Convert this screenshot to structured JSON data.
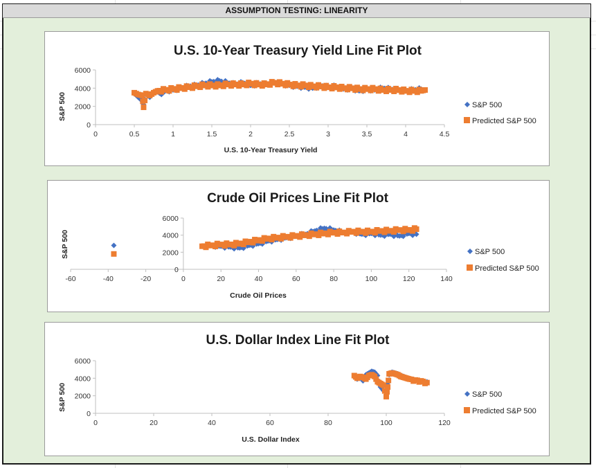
{
  "sheet": {
    "header": "ASSUMPTION TESTING: LINEARITY"
  },
  "colors": {
    "actual": "#4472C4",
    "predicted": "#ED7D31"
  },
  "chart_data": [
    {
      "type": "scatter",
      "title": "U.S. 10-Year Treasury Yield Line Fit  Plot",
      "xlabel": "U.S. 10-Year Treasury Yield",
      "ylabel": "S&P 500",
      "xlim": [
        0,
        4.5
      ],
      "ylim": [
        0,
        6000
      ],
      "xticks": [
        "0",
        "0.5",
        "1",
        "1.5",
        "2",
        "2.5",
        "3",
        "3.5",
        "4",
        "4.5"
      ],
      "yticks": [
        "0",
        "2000",
        "4000",
        "6000"
      ],
      "legend": [
        "S&P 500",
        "Predicted S&P 500"
      ],
      "legend_position": "right",
      "series": [
        {
          "name": "S&P 500",
          "marker": "diamond",
          "points": [
            [
              0.5,
              3400
            ],
            [
              0.55,
              3000
            ],
            [
              0.6,
              2600
            ],
            [
              0.62,
              2200
            ],
            [
              0.65,
              3300
            ],
            [
              0.7,
              3000
            ],
            [
              0.75,
              3500
            ],
            [
              0.8,
              3600
            ],
            [
              0.85,
              3300
            ],
            [
              0.9,
              3700
            ],
            [
              1.0,
              3800
            ],
            [
              1.1,
              4000
            ],
            [
              1.2,
              4200
            ],
            [
              1.3,
              4300
            ],
            [
              1.4,
              4500
            ],
            [
              1.5,
              4700
            ],
            [
              1.6,
              4800
            ],
            [
              1.7,
              4600
            ],
            [
              1.8,
              4400
            ],
            [
              1.9,
              4600
            ],
            [
              2.0,
              4300
            ],
            [
              2.1,
              4500
            ],
            [
              2.2,
              4400
            ],
            [
              2.3,
              4600
            ],
            [
              2.4,
              4500
            ],
            [
              2.5,
              4300
            ],
            [
              2.6,
              4200
            ],
            [
              2.7,
              4100
            ],
            [
              2.8,
              4000
            ],
            [
              2.9,
              4300
            ],
            [
              3.0,
              4100
            ],
            [
              3.1,
              4200
            ],
            [
              3.2,
              3900
            ],
            [
              3.3,
              4000
            ],
            [
              3.4,
              3700
            ],
            [
              3.5,
              3900
            ],
            [
              3.6,
              3800
            ],
            [
              3.7,
              4000
            ],
            [
              3.8,
              3900
            ],
            [
              3.9,
              3800
            ],
            [
              4.0,
              3700
            ],
            [
              4.1,
              3800
            ],
            [
              4.2,
              3900
            ]
          ]
        },
        {
          "name": "Predicted S&P 500",
          "marker": "square",
          "points": [
            [
              0.5,
              3500
            ],
            [
              0.55,
              3300
            ],
            [
              0.6,
              3200
            ],
            [
              0.62,
              1900
            ],
            [
              0.65,
              3400
            ],
            [
              0.7,
              3200
            ],
            [
              0.75,
              3500
            ],
            [
              0.8,
              3700
            ],
            [
              0.9,
              3800
            ],
            [
              1.0,
              3900
            ],
            [
              1.1,
              4000
            ],
            [
              1.2,
              4100
            ],
            [
              1.3,
              4200
            ],
            [
              1.4,
              4300
            ],
            [
              1.5,
              4300
            ],
            [
              1.6,
              4300
            ],
            [
              1.7,
              4400
            ],
            [
              1.8,
              4400
            ],
            [
              1.9,
              4400
            ],
            [
              2.0,
              4500
            ],
            [
              2.1,
              4400
            ],
            [
              2.2,
              4400
            ],
            [
              2.3,
              4600
            ],
            [
              2.4,
              4500
            ],
            [
              2.5,
              4400
            ],
            [
              2.6,
              4300
            ],
            [
              2.7,
              4300
            ],
            [
              2.8,
              4200
            ],
            [
              2.9,
              4200
            ],
            [
              3.0,
              4100
            ],
            [
              3.1,
              4100
            ],
            [
              3.2,
              4000
            ],
            [
              3.3,
              4000
            ],
            [
              3.4,
              3900
            ],
            [
              3.5,
              3900
            ],
            [
              3.6,
              3900
            ],
            [
              3.7,
              3800
            ],
            [
              3.8,
              3800
            ],
            [
              3.9,
              3800
            ],
            [
              4.0,
              3700
            ],
            [
              4.1,
              3700
            ],
            [
              4.2,
              3700
            ],
            [
              4.25,
              3800
            ]
          ]
        }
      ]
    },
    {
      "type": "scatter",
      "title": "Crude Oil Prices Line Fit  Plot",
      "xlabel": "Crude Oil Prices",
      "ylabel": "S&P 500",
      "xlim": [
        -60,
        140
      ],
      "ylim": [
        0,
        6000
      ],
      "xticks": [
        "-60",
        "-40",
        "-20",
        "0",
        "20",
        "40",
        "60",
        "80",
        "100",
        "120",
        "140"
      ],
      "yticks": [
        "0",
        "2000",
        "4000",
        "6000"
      ],
      "legend": [
        "S&P 500",
        "Predicted S&P 500"
      ],
      "legend_position": "right",
      "series": [
        {
          "name": "S&P 500",
          "marker": "diamond",
          "points": [
            [
              -37,
              2800
            ],
            [
              10,
              2700
            ],
            [
              15,
              2800
            ],
            [
              20,
              2700
            ],
            [
              25,
              2600
            ],
            [
              30,
              2500
            ],
            [
              35,
              2800
            ],
            [
              40,
              3000
            ],
            [
              45,
              3300
            ],
            [
              50,
              3500
            ],
            [
              55,
              3700
            ],
            [
              60,
              3900
            ],
            [
              65,
              4100
            ],
            [
              70,
              4500
            ],
            [
              75,
              4800
            ],
            [
              80,
              4600
            ],
            [
              85,
              4300
            ],
            [
              90,
              4400
            ],
            [
              95,
              4100
            ],
            [
              100,
              4200
            ],
            [
              105,
              4000
            ],
            [
              110,
              4100
            ],
            [
              115,
              3900
            ],
            [
              120,
              4200
            ],
            [
              124,
              4100
            ]
          ]
        },
        {
          "name": "Predicted S&P 500",
          "marker": "square",
          "points": [
            [
              -37,
              1800
            ],
            [
              10,
              2700
            ],
            [
              15,
              2800
            ],
            [
              20,
              2900
            ],
            [
              25,
              2900
            ],
            [
              30,
              3000
            ],
            [
              35,
              3200
            ],
            [
              40,
              3400
            ],
            [
              45,
              3600
            ],
            [
              50,
              3700
            ],
            [
              55,
              3800
            ],
            [
              60,
              3900
            ],
            [
              65,
              4000
            ],
            [
              70,
              4100
            ],
            [
              75,
              4200
            ],
            [
              80,
              4300
            ],
            [
              85,
              4300
            ],
            [
              90,
              4400
            ],
            [
              95,
              4400
            ],
            [
              100,
              4400
            ],
            [
              105,
              4500
            ],
            [
              110,
              4500
            ],
            [
              115,
              4600
            ],
            [
              120,
              4600
            ],
            [
              124,
              4700
            ]
          ]
        }
      ]
    },
    {
      "type": "scatter",
      "title": "U.S. Dollar Index Line Fit  Plot",
      "xlabel": "U.S. Dollar Index",
      "ylabel": "S&P 500",
      "xlim": [
        0,
        120
      ],
      "ylim": [
        0,
        6000
      ],
      "xticks": [
        "0",
        "20",
        "40",
        "60",
        "80",
        "100",
        "120"
      ],
      "yticks": [
        "0",
        "2000",
        "4000",
        "6000"
      ],
      "legend": [
        "S&P 500",
        "Predicted S&P 500"
      ],
      "legend_position": "right",
      "series": [
        {
          "name": "S&P 500",
          "marker": "diamond",
          "points": [
            [
              89,
              4200
            ],
            [
              90,
              3900
            ],
            [
              91,
              4100
            ],
            [
              92,
              3700
            ],
            [
              93,
              4400
            ],
            [
              94,
              4600
            ],
            [
              95,
              4800
            ],
            [
              96,
              4700
            ],
            [
              97,
              4300
            ],
            [
              98,
              3000
            ],
            [
              99,
              2600
            ],
            [
              100,
              2500
            ],
            [
              101,
              4400
            ],
            [
              102,
              4700
            ],
            [
              103,
              4600
            ],
            [
              104,
              4500
            ],
            [
              105,
              4300
            ],
            [
              106,
              4200
            ],
            [
              107,
              4000
            ],
            [
              108,
              3900
            ],
            [
              110,
              3800
            ],
            [
              112,
              3700
            ],
            [
              114,
              3600
            ]
          ]
        },
        {
          "name": "Predicted S&P 500",
          "marker": "square",
          "points": [
            [
              89,
              4300
            ],
            [
              90,
              4000
            ],
            [
              91,
              4200
            ],
            [
              92,
              4100
            ],
            [
              93,
              3900
            ],
            [
              94,
              4300
            ],
            [
              95,
              4400
            ],
            [
              96,
              4200
            ],
            [
              97,
              3600
            ],
            [
              98,
              3400
            ],
            [
              99,
              3200
            ],
            [
              100,
              1900
            ],
            [
              100.5,
              3000
            ],
            [
              101,
              4500
            ],
            [
              102,
              4600
            ],
            [
              103,
              4500
            ],
            [
              104,
              4400
            ],
            [
              105,
              4200
            ],
            [
              106,
              4100
            ],
            [
              107,
              4000
            ],
            [
              108,
              3900
            ],
            [
              110,
              3800
            ],
            [
              112,
              3700
            ],
            [
              114,
              3500
            ]
          ]
        }
      ]
    }
  ]
}
